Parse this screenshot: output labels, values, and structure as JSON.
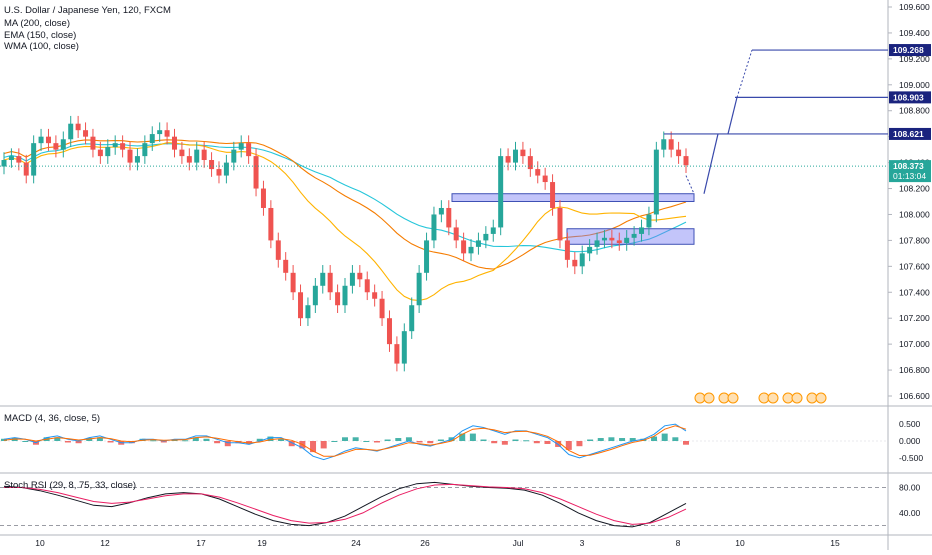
{
  "header": {
    "symbol": "U.S. Dollar / Japanese Yen, 120, FXCM",
    "indicators": [
      "MA (200, close)",
      "EMA (150, close)",
      "WMA (100, close)"
    ]
  },
  "panes": {
    "macd_title": "MACD (4, 36, close, 5)",
    "rsi_title": "Stoch RSI (29, 8, 75, 33, close)"
  },
  "colors": {
    "up": "#26a69a",
    "down": "#ef5350",
    "ma": "#26c6da",
    "ema": "#f57c00",
    "wma": "#ffb300",
    "zone": "#7b7ff5",
    "arrow": "#3949ab",
    "macd": "#2196f3",
    "signal": "#ff6d00",
    "stoch_k": "#131722",
    "stoch_d": "#e91e63",
    "price_label": "#26a69a"
  },
  "chart_data": [
    {
      "type": "candlestick",
      "title": "U.S. Dollar / Japanese Yen, 120, FXCM",
      "y_axis_ticks": [
        "109.600",
        "109.400",
        "109.200",
        "109.000",
        "108.800",
        "108.600",
        "108.400",
        "108.200",
        "108.000",
        "107.800",
        "107.600",
        "107.400",
        "107.200",
        "107.000",
        "106.800",
        "106.600"
      ],
      "ylim": [
        106.55,
        109.65
      ],
      "x_axis_ticks": [
        "10",
        "12",
        "17",
        "19",
        "24",
        "26",
        "Jul",
        "3",
        "8",
        "10",
        "15"
      ],
      "last_price": "108.373",
      "countdown": "01:13:04",
      "target_labels": [
        "109.268",
        "108.903",
        "108.621"
      ],
      "target_levels": [
        109.268,
        108.903,
        108.621
      ],
      "support_zones": [
        {
          "from": 108.1,
          "to": 108.16
        },
        {
          "from": 107.77,
          "to": 107.89
        }
      ],
      "path_points": [
        [
          108.16,
          "start"
        ],
        [
          108.621,
          "t1"
        ],
        [
          108.903,
          "t2"
        ],
        [
          109.268,
          "t3"
        ]
      ],
      "close_series": [
        108.42,
        108.45,
        108.4,
        108.3,
        108.55,
        108.6,
        108.55,
        108.5,
        108.58,
        108.7,
        108.65,
        108.6,
        108.5,
        108.45,
        108.52,
        108.55,
        108.5,
        108.4,
        108.45,
        108.55,
        108.62,
        108.65,
        108.6,
        108.5,
        108.45,
        108.4,
        108.5,
        108.42,
        108.35,
        108.3,
        108.4,
        108.5,
        108.55,
        108.45,
        108.2,
        108.05,
        107.8,
        107.65,
        107.55,
        107.4,
        107.2,
        107.3,
        107.45,
        107.55,
        107.4,
        107.3,
        107.45,
        107.55,
        107.5,
        107.4,
        107.35,
        107.2,
        107.0,
        106.85,
        107.1,
        107.3,
        107.55,
        107.8,
        108.0,
        108.05,
        107.9,
        107.8,
        107.7,
        107.75,
        107.8,
        107.85,
        107.9,
        108.45,
        108.4,
        108.5,
        108.45,
        108.35,
        108.3,
        108.25,
        108.05,
        107.8,
        107.65,
        107.6,
        107.7,
        107.75,
        107.8,
        107.82,
        107.8,
        107.78,
        107.82,
        107.85,
        107.9,
        108.0,
        108.5,
        108.58,
        108.5,
        108.45,
        108.38
      ]
    },
    {
      "type": "line",
      "title": "MACD (4, 36, close, 5)",
      "y_axis_ticks": [
        "0.500",
        "0.000",
        "-0.500"
      ],
      "ylim": [
        -0.8,
        0.8
      ],
      "series": [
        {
          "name": "MACD",
          "values": [
            0.05,
            0.1,
            0.05,
            -0.05,
            0.1,
            0.15,
            0.05,
            0.0,
            0.1,
            0.15,
            0.05,
            -0.05,
            -0.05,
            0.05,
            0.05,
            0.0,
            0.05,
            0.05,
            0.15,
            0.15,
            0.05,
            -0.05,
            -0.05,
            -0.1,
            0.0,
            0.1,
            0.1,
            -0.05,
            -0.2,
            -0.45,
            -0.55,
            -0.45,
            -0.3,
            -0.2,
            -0.25,
            -0.3,
            -0.2,
            -0.1,
            0.0,
            -0.1,
            -0.15,
            -0.05,
            0.05,
            0.3,
            0.45,
            0.4,
            0.3,
            0.2,
            0.3,
            0.3,
            0.2,
            0.1,
            -0.1,
            -0.4,
            -0.5,
            -0.4,
            -0.3,
            -0.2,
            -0.1,
            0.0,
            0.05,
            0.2,
            0.45,
            0.5,
            0.3
          ]
        },
        {
          "name": "Signal",
          "values": [
            0.02,
            0.06,
            0.05,
            0.0,
            0.05,
            0.1,
            0.07,
            0.03,
            0.06,
            0.1,
            0.07,
            0.0,
            -0.02,
            0.02,
            0.04,
            0.02,
            0.03,
            0.04,
            0.1,
            0.12,
            0.08,
            0.02,
            -0.02,
            -0.06,
            -0.03,
            0.04,
            0.07,
            0.02,
            -0.1,
            -0.3,
            -0.45,
            -0.45,
            -0.35,
            -0.25,
            -0.25,
            -0.28,
            -0.22,
            -0.14,
            -0.05,
            -0.08,
            -0.12,
            -0.07,
            0.0,
            0.2,
            0.35,
            0.38,
            0.33,
            0.25,
            0.28,
            0.29,
            0.23,
            0.14,
            -0.02,
            -0.28,
            -0.43,
            -0.42,
            -0.34,
            -0.25,
            -0.14,
            -0.04,
            0.02,
            0.14,
            0.35,
            0.45,
            0.35
          ]
        }
      ]
    },
    {
      "type": "line",
      "title": "Stoch RSI (29, 8, 75, 33, close)",
      "y_axis_ticks": [
        "80.00",
        "40.00"
      ],
      "ylim": [
        10,
        95
      ],
      "series": [
        {
          "name": "K",
          "values": [
            82,
            80,
            75,
            68,
            60,
            52,
            50,
            56,
            64,
            70,
            72,
            70,
            62,
            50,
            38,
            28,
            22,
            20,
            25,
            35,
            50,
            65,
            78,
            86,
            88,
            85,
            82,
            80,
            79,
            76,
            68,
            55,
            40,
            28,
            20,
            18,
            25,
            40,
            55
          ]
        },
        {
          "name": "D",
          "values": [
            80,
            80,
            77,
            72,
            65,
            58,
            55,
            57,
            62,
            67,
            70,
            70,
            65,
            56,
            46,
            36,
            28,
            24,
            25,
            30,
            40,
            55,
            68,
            78,
            84,
            85,
            83,
            81,
            80,
            78,
            72,
            62,
            50,
            38,
            28,
            22,
            24,
            33,
            46
          ]
        }
      ]
    }
  ]
}
